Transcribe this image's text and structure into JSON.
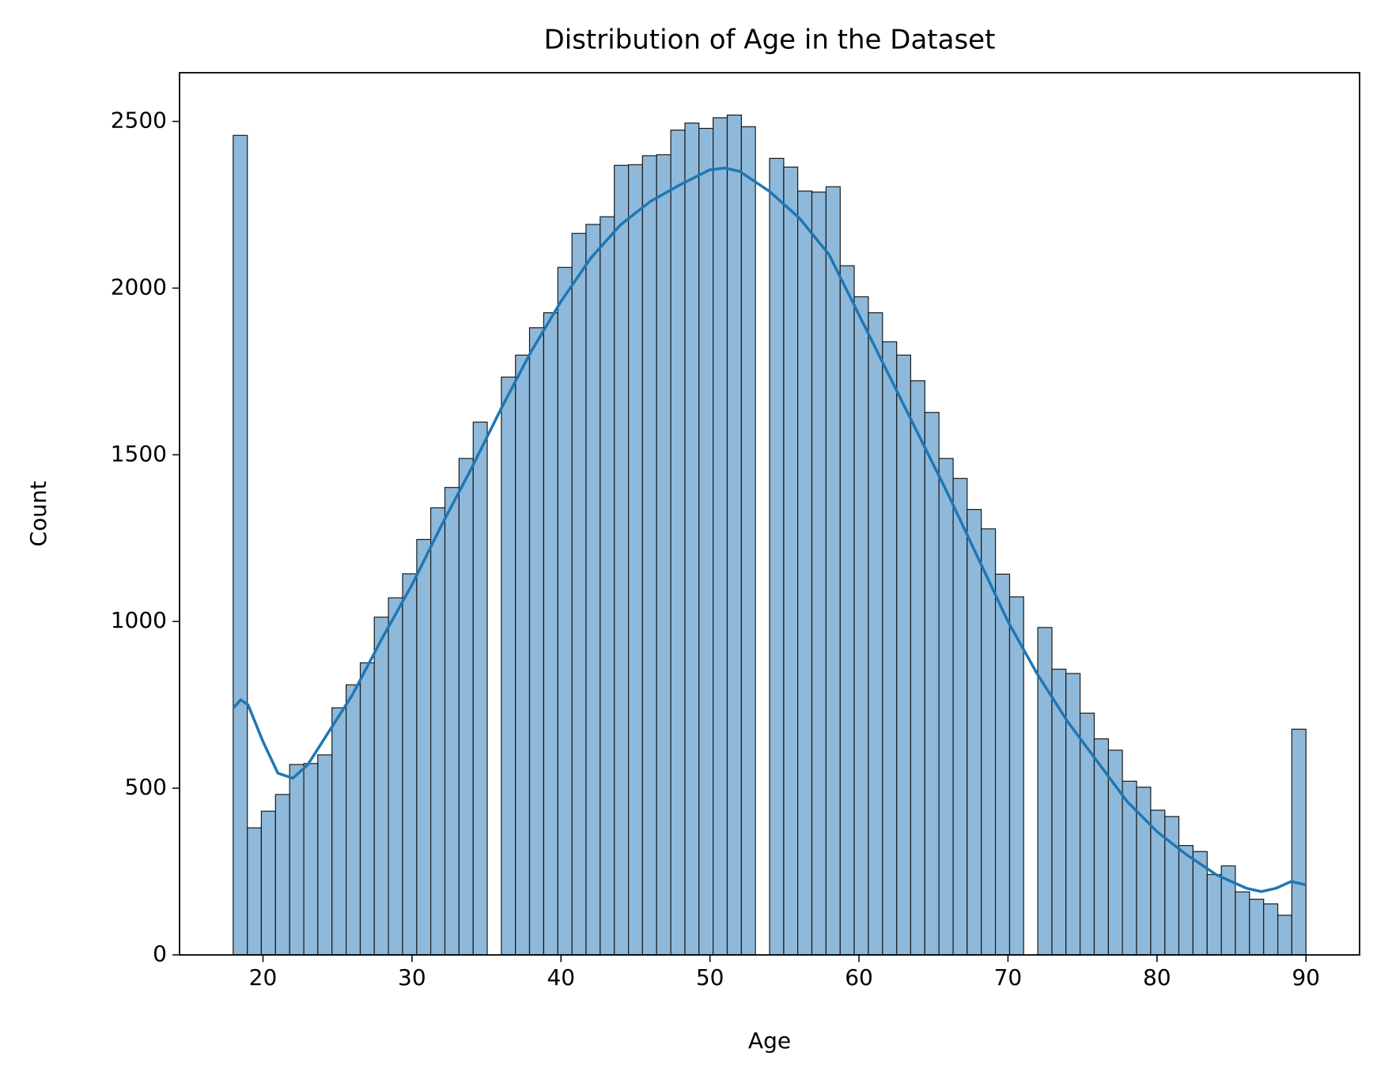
{
  "chart_data": {
    "type": "histogram",
    "title": "Distribution of Age in the Dataset",
    "x_label": "Age",
    "y_label": "Count",
    "bins": [
      18.0,
      18.95,
      19.89,
      20.84,
      21.79,
      22.74,
      23.68,
      24.63,
      25.58,
      26.53,
      27.47,
      28.42,
      29.37,
      30.32,
      31.26,
      32.21,
      33.16,
      34.11,
      35.05,
      36.0,
      36.95,
      37.89,
      38.84,
      39.79,
      40.74,
      41.68,
      42.63,
      43.58,
      44.53,
      45.47,
      46.42,
      47.37,
      48.32,
      49.26,
      50.21,
      51.16,
      52.11,
      53.05,
      54.0,
      54.95,
      55.89,
      56.84,
      57.79,
      58.74,
      59.68,
      60.63,
      61.58,
      62.53,
      63.47,
      64.42,
      65.37,
      66.32,
      67.26,
      68.21,
      69.16,
      70.11,
      71.05,
      72.0,
      72.95,
      73.89,
      74.84,
      75.79,
      76.74,
      77.68,
      78.63,
      79.58,
      80.53,
      81.47,
      82.42,
      83.37,
      84.32,
      85.26,
      86.21,
      87.16,
      88.11,
      89.05,
      90.0
    ],
    "values": [
      2458,
      381,
      431,
      481,
      571,
      574,
      600,
      741,
      810,
      876,
      1013,
      1071,
      1143,
      1246,
      1341,
      1402,
      1489,
      1598,
      0,
      1733,
      1799,
      1881,
      1926,
      2062,
      2164,
      2191,
      2214,
      2368,
      2370,
      2397,
      2400,
      2474,
      2495,
      2479,
      2511,
      2519,
      2484,
      0,
      2389,
      2363,
      2291,
      2288,
      2304,
      2067,
      1974,
      1926,
      1839,
      1799,
      1722,
      1627,
      1489,
      1429,
      1336,
      1278,
      1142,
      1074,
      0,
      982,
      857,
      844,
      725,
      648,
      614,
      521,
      503,
      434,
      415,
      328,
      310,
      241,
      267,
      189,
      167,
      153,
      119,
      677
    ],
    "color": "#8fb9da",
    "edge_color": "#1a1a1a",
    "kde": {
      "color": "#1f77b4",
      "x": [
        18,
        18.5,
        19,
        20,
        21,
        22,
        23,
        24,
        26,
        28,
        30,
        32,
        34,
        36,
        38,
        40,
        42,
        44,
        46,
        48,
        50,
        51,
        52,
        54,
        56,
        58,
        60,
        62,
        64,
        66,
        68,
        70,
        72,
        74,
        76,
        78,
        80,
        82,
        84,
        86,
        87,
        88,
        89,
        90
      ],
      "values": [
        740,
        765,
        750,
        640,
        545,
        530,
        570,
        640,
        780,
        950,
        1110,
        1290,
        1460,
        1640,
        1810,
        1960,
        2090,
        2190,
        2260,
        2310,
        2355,
        2360,
        2350,
        2290,
        2210,
        2100,
        1920,
        1740,
        1560,
        1380,
        1190,
        1000,
        840,
        700,
        580,
        460,
        370,
        300,
        240,
        200,
        190,
        200,
        220,
        210
      ]
    },
    "xlim": [
      14.4,
      93.6
    ],
    "ylim": [
      0,
      2646
    ],
    "xticks": [
      20,
      30,
      40,
      50,
      60,
      70,
      80,
      90
    ],
    "yticks": [
      0,
      500,
      1000,
      1500,
      2000,
      2500
    ]
  }
}
